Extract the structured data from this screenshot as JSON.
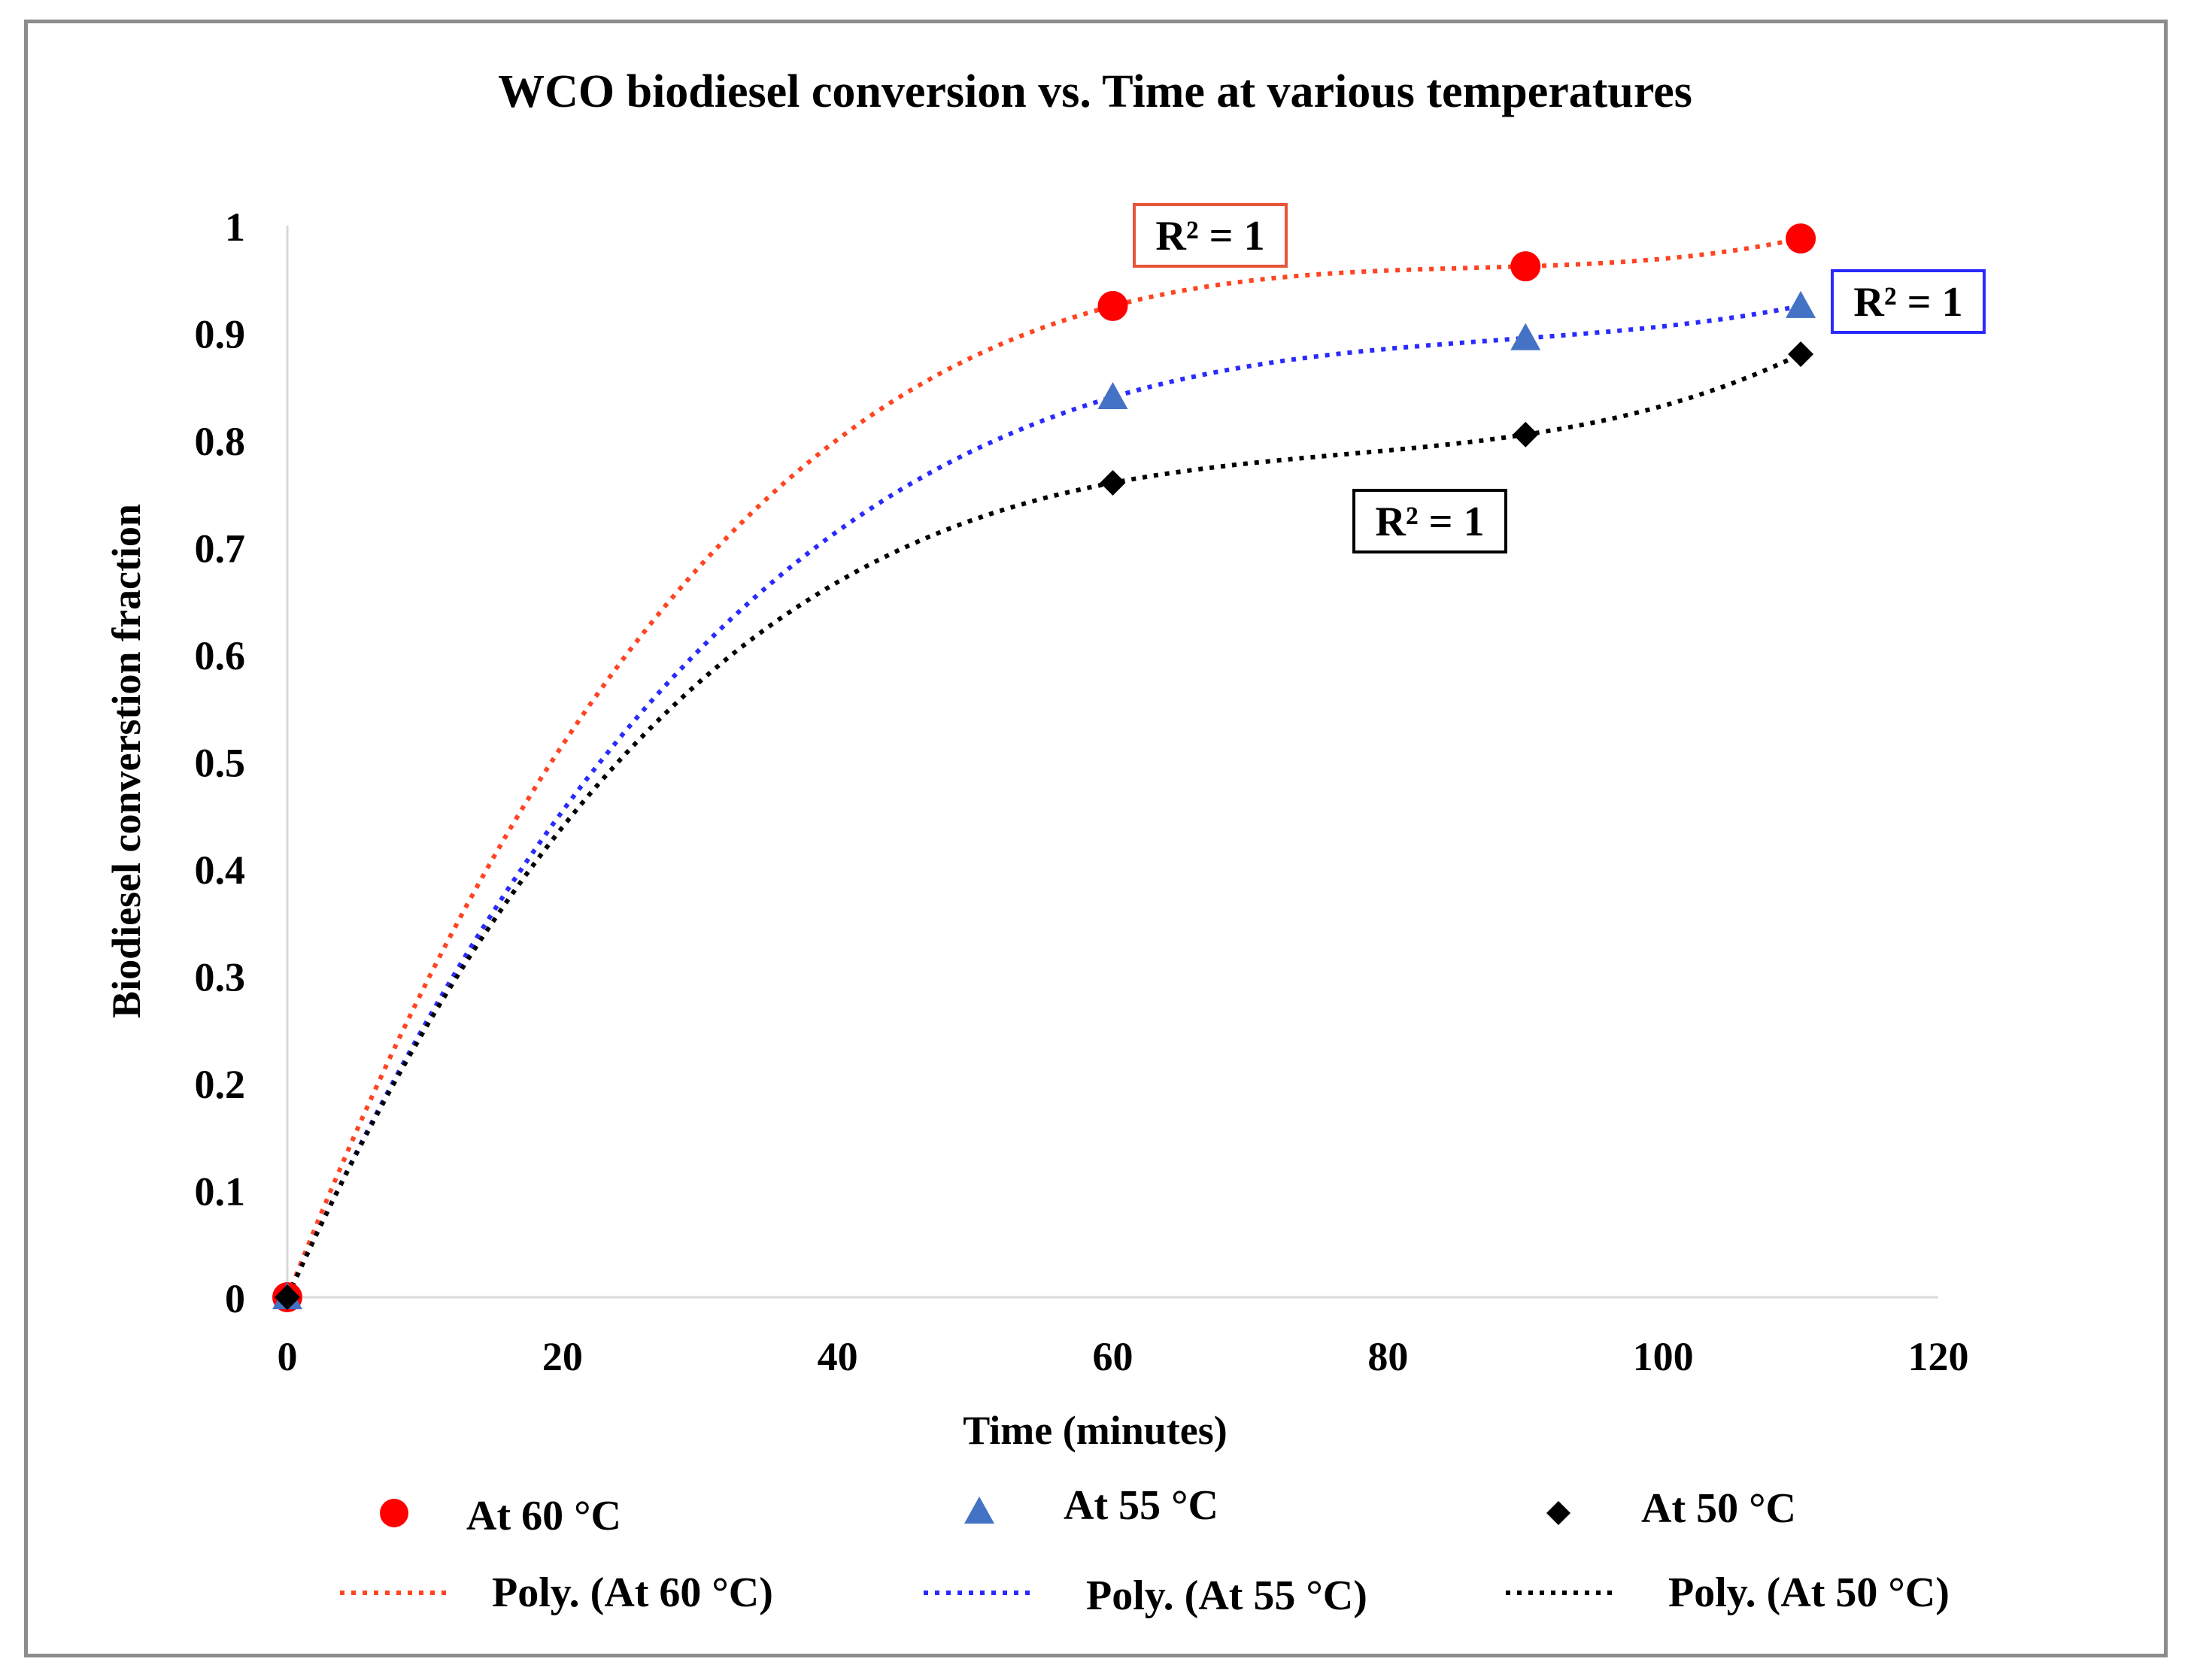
{
  "chart_data": {
    "type": "scatter",
    "title": "WCO biodiesel conversion vs. Time at various temperatures",
    "xlabel": "Time (minutes)",
    "ylabel": "Biodiesel converstion  fraction",
    "xlim": [
      0,
      120
    ],
    "ylim": [
      0,
      1
    ],
    "x_ticks": [
      0,
      20,
      40,
      60,
      80,
      100,
      120
    ],
    "y_ticks": [
      0,
      0.1,
      0.2,
      0.3,
      0.4,
      0.5,
      0.6,
      0.7,
      0.8,
      0.9,
      1
    ],
    "y_tick_labels": [
      "0",
      "0.1",
      "0.2",
      "0.3",
      "0.4",
      "0.5",
      "0.6",
      "0.7",
      "0.8",
      "0.9",
      "1"
    ],
    "grid": false,
    "legend_position": "bottom",
    "series": [
      {
        "name": "At 60 °C",
        "trend_name": "Poly. (At 60 °C)",
        "marker": "circle",
        "color": "#ff0000",
        "trend_color": "#ff4422",
        "x": [
          0,
          60,
          90,
          110
        ],
        "y": [
          0,
          0.925,
          0.962,
          0.988
        ],
        "r2_label": "R² = 1",
        "r2_box_color": "#e8543a"
      },
      {
        "name": "At 55 °C",
        "trend_name": "Poly. (At 55 °C)",
        "marker": "triangle",
        "color": "#4472c4",
        "trend_color": "#2a2aff",
        "x": [
          0,
          60,
          90,
          110
        ],
        "y": [
          0,
          0.84,
          0.895,
          0.925
        ],
        "r2_label": "R² = 1",
        "r2_box_color": "#2a2aff"
      },
      {
        "name": "At 50 °C",
        "trend_name": "Poly. (At 50 °C)",
        "marker": "diamond",
        "color": "#000000",
        "trend_color": "#000000",
        "x": [
          0,
          60,
          90,
          110
        ],
        "y": [
          0,
          0.76,
          0.805,
          0.88
        ],
        "r2_label": "R² = 1",
        "r2_box_color": "#000000"
      }
    ]
  }
}
